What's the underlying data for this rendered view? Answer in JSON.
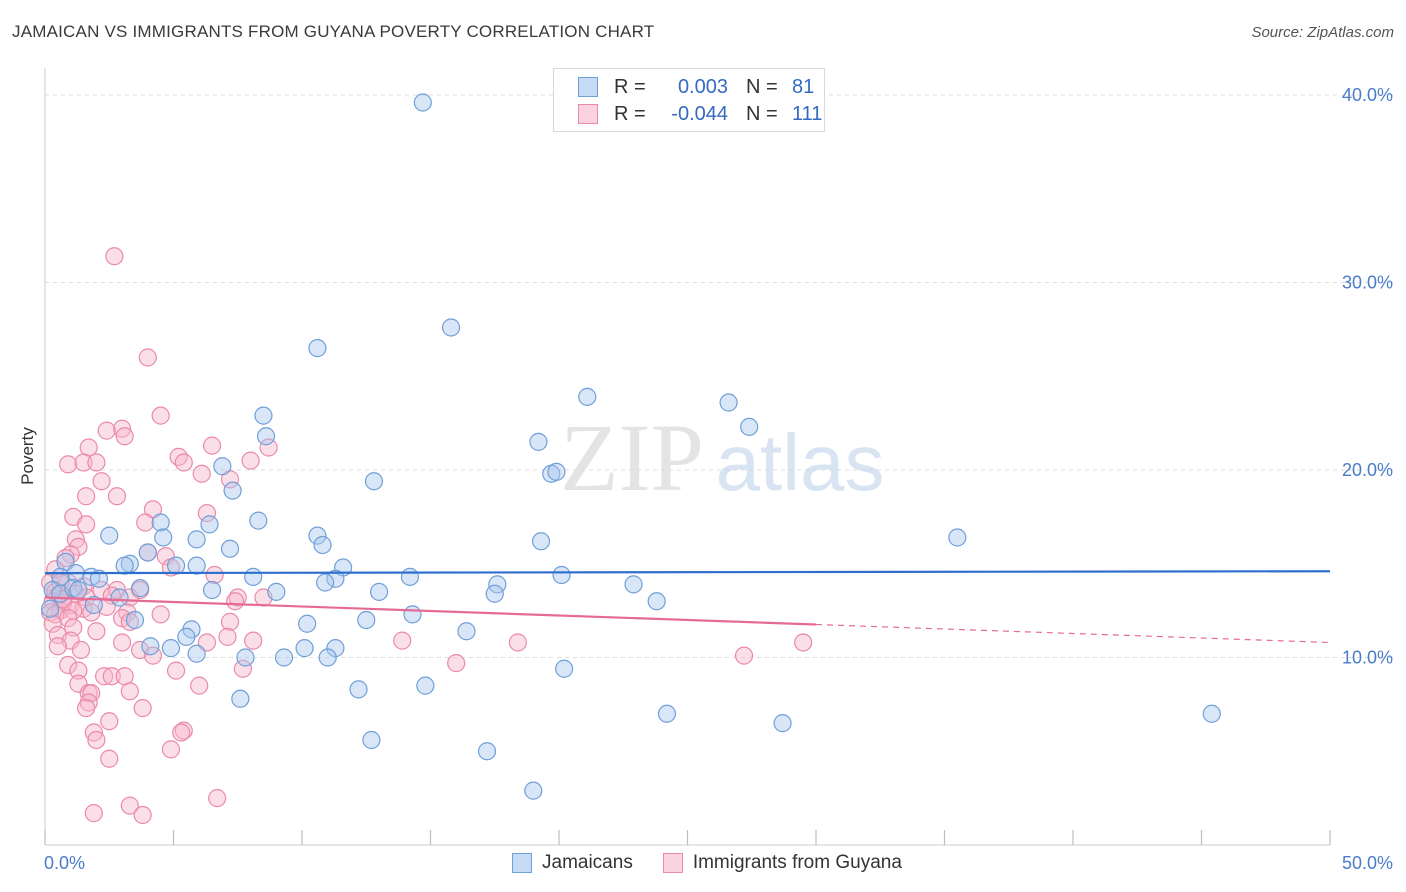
{
  "header": {
    "title": "JAMAICAN VS IMMIGRANTS FROM GUYANA POVERTY CORRELATION CHART",
    "source": "Source: ZipAtlas.com"
  },
  "watermark": {
    "part1": "ZIP",
    "part2": "atlas"
  },
  "legend": {
    "rows": [
      {
        "r_label": "R =",
        "r_value": "0.003",
        "n_label": "N =",
        "n_value": "81"
      },
      {
        "r_label": "R =",
        "r_value": "-0.044",
        "n_label": "N =",
        "n_value": "111"
      }
    ]
  },
  "bottom_legend": {
    "series1": "Jamaicans",
    "series2": "Immigrants from Guyana"
  },
  "colors": {
    "blue_fill": "#a8c8ee",
    "blue_stroke": "#6f9fd8",
    "blue_line": "#2e6fce",
    "pink_fill": "#f6b8cc",
    "pink_stroke": "#eb89a8",
    "pink_line": "#e56b95",
    "axis_text": "#4a7cc9",
    "grid": "#dddddd"
  },
  "chart_data": {
    "type": "scatter",
    "title": "JAMAICAN VS IMMIGRANTS FROM GUYANA POVERTY CORRELATION CHART",
    "xlabel": "",
    "ylabel": "Poverty",
    "xlim": [
      0,
      50
    ],
    "ylim": [
      0,
      40.8
    ],
    "x_tick_labels": [
      "0.0%",
      "50.0%"
    ],
    "y_ticks": [
      10,
      20,
      30,
      40
    ],
    "y_tick_labels": [
      "10.0%",
      "20.0%",
      "30.0%",
      "40.0%"
    ],
    "grid": "horizontal dashed",
    "legend_position": "top-center",
    "series": [
      {
        "name": "Jamaicans",
        "R": 0.003,
        "N": 81,
        "trend": {
          "x0": 0,
          "y0": 14.5,
          "x1": 50,
          "y1": 14.6,
          "dashed_from": null
        },
        "points": [
          [
            14.7,
            39.6
          ],
          [
            15.8,
            27.6
          ],
          [
            10.6,
            26.5
          ],
          [
            21.1,
            23.9
          ],
          [
            26.6,
            23.6
          ],
          [
            27.4,
            22.3
          ],
          [
            8.5,
            22.9
          ],
          [
            8.6,
            21.8
          ],
          [
            19.2,
            21.5
          ],
          [
            19.7,
            19.8
          ],
          [
            19.9,
            19.9
          ],
          [
            12.8,
            19.4
          ],
          [
            6.9,
            20.2
          ],
          [
            7.3,
            18.9
          ],
          [
            35.5,
            16.4
          ],
          [
            10.6,
            16.5
          ],
          [
            10.8,
            16.0
          ],
          [
            19.3,
            16.2
          ],
          [
            8.3,
            17.3
          ],
          [
            6.4,
            17.1
          ],
          [
            2.5,
            16.5
          ],
          [
            4.5,
            17.2
          ],
          [
            4.6,
            16.4
          ],
          [
            5.9,
            16.3
          ],
          [
            0.8,
            15.1
          ],
          [
            7.2,
            15.8
          ],
          [
            4.0,
            15.6
          ],
          [
            3.3,
            15.0
          ],
          [
            3.1,
            14.9
          ],
          [
            5.1,
            14.9
          ],
          [
            5.9,
            14.9
          ],
          [
            11.6,
            14.8
          ],
          [
            1.2,
            14.5
          ],
          [
            0.6,
            14.3
          ],
          [
            1.8,
            14.3
          ],
          [
            2.1,
            14.2
          ],
          [
            8.1,
            14.3
          ],
          [
            14.2,
            14.3
          ],
          [
            11.3,
            14.2
          ],
          [
            20.1,
            14.4
          ],
          [
            10.9,
            14.0
          ],
          [
            17.6,
            13.9
          ],
          [
            22.9,
            13.9
          ],
          [
            0.3,
            13.6
          ],
          [
            0.6,
            13.4
          ],
          [
            1.1,
            13.7
          ],
          [
            1.3,
            13.6
          ],
          [
            3.7,
            13.7
          ],
          [
            6.5,
            13.6
          ],
          [
            9.0,
            13.5
          ],
          [
            13.0,
            13.5
          ],
          [
            17.5,
            13.4
          ],
          [
            2.9,
            13.2
          ],
          [
            1.9,
            12.8
          ],
          [
            23.8,
            13.0
          ],
          [
            0.2,
            12.6
          ],
          [
            14.3,
            12.3
          ],
          [
            12.5,
            12.0
          ],
          [
            3.5,
            12.0
          ],
          [
            10.2,
            11.8
          ],
          [
            5.7,
            11.5
          ],
          [
            16.4,
            11.4
          ],
          [
            5.5,
            11.1
          ],
          [
            4.1,
            10.6
          ],
          [
            4.9,
            10.5
          ],
          [
            10.1,
            10.5
          ],
          [
            11.3,
            10.5
          ],
          [
            5.9,
            10.2
          ],
          [
            7.8,
            10.0
          ],
          [
            9.3,
            10.0
          ],
          [
            11.0,
            10.0
          ],
          [
            20.2,
            9.4
          ],
          [
            14.8,
            8.5
          ],
          [
            12.2,
            8.3
          ],
          [
            7.6,
            7.8
          ],
          [
            24.2,
            7.0
          ],
          [
            28.7,
            6.5
          ],
          [
            45.4,
            7.0
          ],
          [
            12.7,
            5.6
          ],
          [
            17.2,
            5.0
          ],
          [
            19.0,
            2.9
          ]
        ]
      },
      {
        "name": "Immigrants from Guyana",
        "R": -0.044,
        "N": 111,
        "trend": {
          "x0": 0,
          "y0": 13.2,
          "x1": 50,
          "y1": 10.8,
          "dashed_from": 30
        },
        "points": [
          [
            2.7,
            31.4
          ],
          [
            4.0,
            26.0
          ],
          [
            4.5,
            22.9
          ],
          [
            3.0,
            22.2
          ],
          [
            3.1,
            21.8
          ],
          [
            2.4,
            22.1
          ],
          [
            1.7,
            21.2
          ],
          [
            6.5,
            21.3
          ],
          [
            8.7,
            21.2
          ],
          [
            5.2,
            20.7
          ],
          [
            5.4,
            20.4
          ],
          [
            0.9,
            20.3
          ],
          [
            1.5,
            20.4
          ],
          [
            2.0,
            20.4
          ],
          [
            8.0,
            20.5
          ],
          [
            6.1,
            19.8
          ],
          [
            7.2,
            19.5
          ],
          [
            2.2,
            19.4
          ],
          [
            1.6,
            18.6
          ],
          [
            2.8,
            18.6
          ],
          [
            4.2,
            17.9
          ],
          [
            6.3,
            17.7
          ],
          [
            1.1,
            17.5
          ],
          [
            1.6,
            17.1
          ],
          [
            3.9,
            17.2
          ],
          [
            1.2,
            16.3
          ],
          [
            1.3,
            15.9
          ],
          [
            4.0,
            15.6
          ],
          [
            1.0,
            15.5
          ],
          [
            0.8,
            15.3
          ],
          [
            4.7,
            15.4
          ],
          [
            4.9,
            14.8
          ],
          [
            0.4,
            14.7
          ],
          [
            6.6,
            14.4
          ],
          [
            0.2,
            14.0
          ],
          [
            0.9,
            14.0
          ],
          [
            1.5,
            13.8
          ],
          [
            2.2,
            13.6
          ],
          [
            2.8,
            13.6
          ],
          [
            3.7,
            13.6
          ],
          [
            0.4,
            13.5
          ],
          [
            0.5,
            13.3
          ],
          [
            1.2,
            13.4
          ],
          [
            1.6,
            13.2
          ],
          [
            2.6,
            13.3
          ],
          [
            3.3,
            13.2
          ],
          [
            7.5,
            13.2
          ],
          [
            8.5,
            13.2
          ],
          [
            0.3,
            13.0
          ],
          [
            0.7,
            12.9
          ],
          [
            1.0,
            12.8
          ],
          [
            1.5,
            12.6
          ],
          [
            2.4,
            12.7
          ],
          [
            0.6,
            12.5
          ],
          [
            1.1,
            12.5
          ],
          [
            0.2,
            12.4
          ],
          [
            0.4,
            12.3
          ],
          [
            1.8,
            12.4
          ],
          [
            3.2,
            12.4
          ],
          [
            4.5,
            12.3
          ],
          [
            0.9,
            12.1
          ],
          [
            3.0,
            12.1
          ],
          [
            0.3,
            11.8
          ],
          [
            3.3,
            11.9
          ],
          [
            7.2,
            11.9
          ],
          [
            1.1,
            11.6
          ],
          [
            2.0,
            11.4
          ],
          [
            0.5,
            11.2
          ],
          [
            7.1,
            11.1
          ],
          [
            1.0,
            10.9
          ],
          [
            3.0,
            10.8
          ],
          [
            6.3,
            10.8
          ],
          [
            8.1,
            10.9
          ],
          [
            13.9,
            10.9
          ],
          [
            18.4,
            10.8
          ],
          [
            29.5,
            10.8
          ],
          [
            0.5,
            10.6
          ],
          [
            3.7,
            10.4
          ],
          [
            1.4,
            10.4
          ],
          [
            4.2,
            10.1
          ],
          [
            27.2,
            10.1
          ],
          [
            0.9,
            9.6
          ],
          [
            16.0,
            9.7
          ],
          [
            1.3,
            9.3
          ],
          [
            5.1,
            9.3
          ],
          [
            7.7,
            9.4
          ],
          [
            2.3,
            9.0
          ],
          [
            2.6,
            9.0
          ],
          [
            3.1,
            9.0
          ],
          [
            1.3,
            8.6
          ],
          [
            6.0,
            8.5
          ],
          [
            1.7,
            8.1
          ],
          [
            1.8,
            8.1
          ],
          [
            3.3,
            8.2
          ],
          [
            1.7,
            7.6
          ],
          [
            1.6,
            7.3
          ],
          [
            3.8,
            7.3
          ],
          [
            2.5,
            6.6
          ],
          [
            1.9,
            6.0
          ],
          [
            5.4,
            6.1
          ],
          [
            5.3,
            6.0
          ],
          [
            2.0,
            5.6
          ],
          [
            4.9,
            5.1
          ],
          [
            2.5,
            4.6
          ],
          [
            6.7,
            2.5
          ],
          [
            3.3,
            2.1
          ],
          [
            1.9,
            1.7
          ],
          [
            3.8,
            1.6
          ],
          [
            7.4,
            13.0
          ],
          [
            0.6,
            14.0
          ],
          [
            0.7,
            13.1
          ]
        ]
      }
    ]
  }
}
